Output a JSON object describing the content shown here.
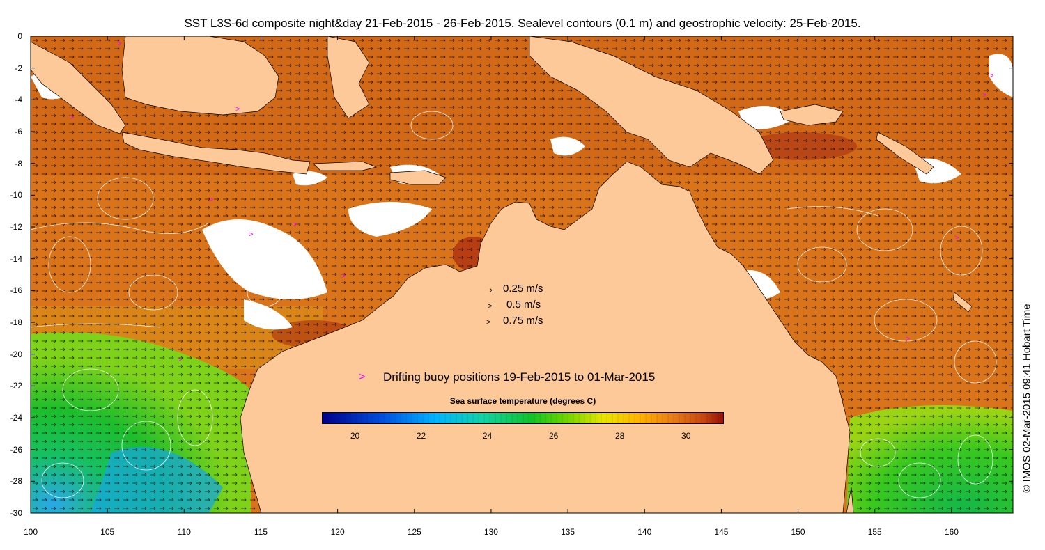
{
  "title": "SST L3S-6d composite night&day 21-Feb-2015 - 26-Feb-2015. Sealevel contours (0.1 m) and geostrophic velocity: 25-Feb-2015.",
  "copyright": "© IMOS 02-Mar-2015 09:41 Hobart Time",
  "axes": {
    "x_ticks": [
      "100",
      "105",
      "110",
      "115",
      "120",
      "125",
      "130",
      "135",
      "140",
      "145",
      "150",
      "155",
      "160"
    ],
    "y_ticks": [
      "0",
      "-2",
      "-4",
      "-6",
      "-8",
      "-10",
      "-12",
      "-14",
      "-16",
      "-18",
      "-20",
      "-22",
      "-24",
      "-26",
      "-28",
      "-30"
    ],
    "x_range": [
      100,
      164
    ],
    "y_range": [
      -30,
      0
    ]
  },
  "velocity_legend": [
    {
      "label": "0.25 m/s",
      "speed": 0.25
    },
    {
      "label": "0.5 m/s",
      "speed": 0.5
    },
    {
      "label": "0.75 m/s",
      "speed": 0.75
    }
  ],
  "buoy_legend": {
    "symbol": ">",
    "label": "Drifting buoy positions 19-Feb-2015 to 01-Mar-2015",
    "color": "#ff00ff"
  },
  "colorbar": {
    "title": "Sea surface temperature (degrees C)",
    "ticks": [
      "20",
      "22",
      "24",
      "26",
      "28",
      "30"
    ],
    "range": [
      19,
      31.1
    ]
  },
  "colors": {
    "land": "#fdc999",
    "missing_data": "#ffffff",
    "coastline": "#000000",
    "contours": "#ffffff",
    "velocity_arrows": "#000000"
  }
}
